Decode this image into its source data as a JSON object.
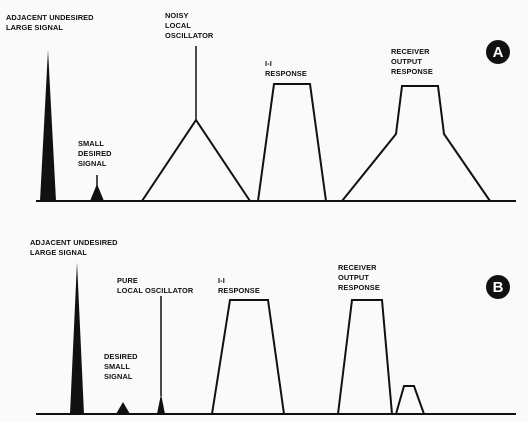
{
  "panel_a": {
    "badge": "A",
    "adjacent_label": [
      "ADJACENT UNDESIRED",
      "LARGE SIGNAL"
    ],
    "desired_label": [
      "SMALL",
      "DESIRED",
      "SIGNAL"
    ],
    "oscillator_label": [
      "NOISY",
      "LOCAL",
      "OSCILLATOR"
    ],
    "if_label": [
      "I-I",
      "RESPONSE"
    ],
    "output_label": [
      "RECEIVER",
      "OUTPUT",
      "RESPONSE"
    ]
  },
  "panel_b": {
    "badge": "B",
    "adjacent_label": [
      "ADJACENT UNDESIRED",
      "LARGE SIGNAL"
    ],
    "desired_label": [
      "DESIRED",
      "SMALL",
      "SIGNAL"
    ],
    "oscillator_label": [
      "PURE",
      "LOCAL OSCILLATOR"
    ],
    "if_label": [
      "I-I",
      "RESPONSE"
    ],
    "output_label": [
      "RECEIVER",
      "OUTPUT",
      "RESPONSE"
    ]
  }
}
